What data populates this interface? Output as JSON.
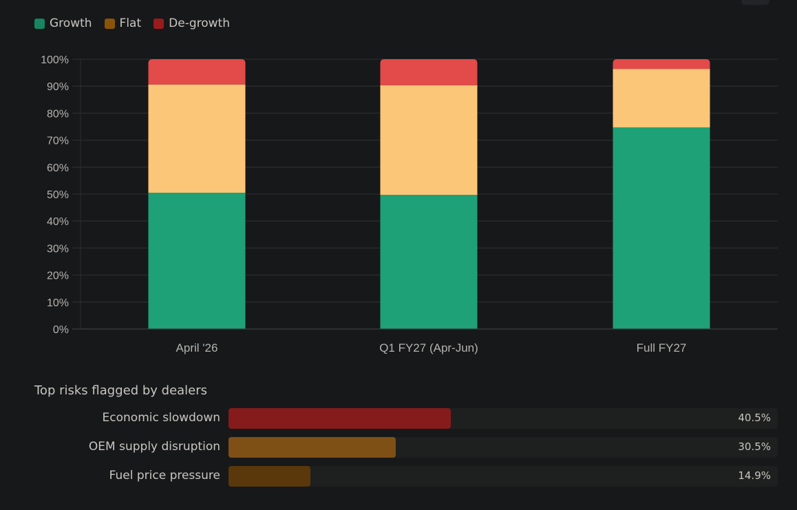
{
  "chart_data": {
    "type": "bar",
    "stacked": true,
    "categories": [
      "April '26",
      "Q1 FY27 (Apr-Jun)",
      "Full FY27"
    ],
    "series": [
      {
        "name": "Growth",
        "color": "#1ea176",
        "legend_color": "#178560",
        "values": [
          50.5,
          49.7,
          74.7
        ]
      },
      {
        "name": "Flat",
        "color": "#fbc677",
        "legend_color": "#8a5408",
        "values": [
          40.1,
          40.6,
          21.7
        ]
      },
      {
        "name": "De-growth",
        "color": "#e24b4a",
        "legend_color": "#9a1b1b",
        "values": [
          9.4,
          9.7,
          3.6
        ]
      }
    ],
    "ylim": [
      0,
      100
    ],
    "yticks": [
      "0%",
      "10%",
      "20%",
      "30%",
      "40%",
      "50%",
      "60%",
      "70%",
      "80%",
      "90%",
      "100%"
    ],
    "grid": true,
    "legend": "top-left"
  },
  "risks": {
    "title": "Top risks flagged by dealers",
    "items": [
      {
        "label": "Economic slowdown",
        "value": 40.5,
        "display": "40.5%",
        "color": "#851b1b"
      },
      {
        "label": "OEM supply disruption",
        "value": 30.5,
        "display": "30.5%",
        "color": "#7f5015"
      },
      {
        "label": "Fuel price pressure",
        "value": 14.9,
        "display": "14.9%",
        "color": "#5a380c"
      }
    ]
  }
}
